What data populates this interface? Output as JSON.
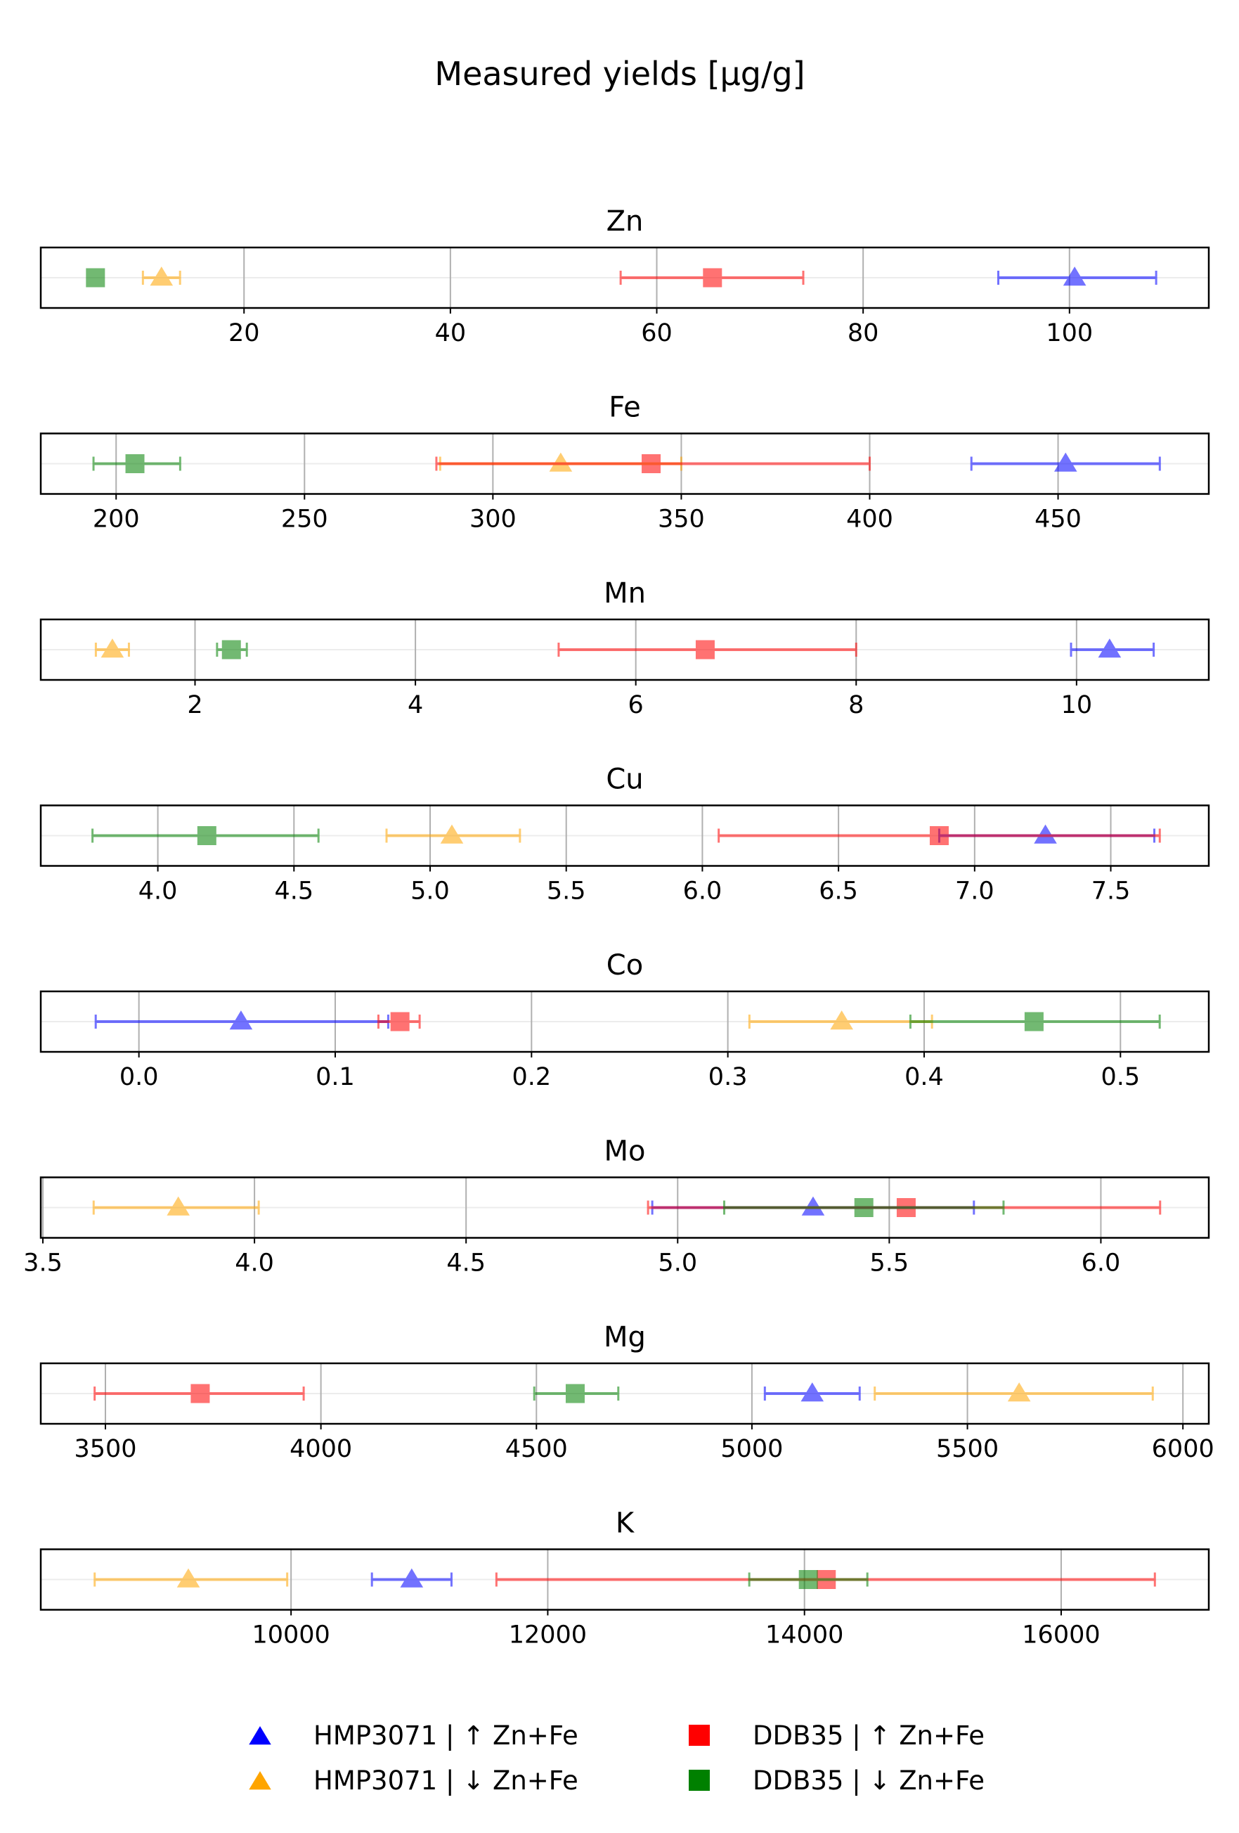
{
  "chart_data": {
    "type": "scatter",
    "title": "Measured yields [µg/g]",
    "grid": "vertical",
    "legend_position": "bottom-center",
    "legend": [
      {
        "label": "HMP3071 | ↑ Zn+Fe",
        "color": "#0000ff",
        "marker": "triangle"
      },
      {
        "label": "HMP3071 | ↓ Zn+Fe",
        "color": "#ffa500",
        "marker": "triangle"
      },
      {
        "label": "DDB35 | ↑ Zn+Fe",
        "color": "#ff0000",
        "marker": "square"
      },
      {
        "label": "DDB35 | ↓ Zn+Fe",
        "color": "#008000",
        "marker": "square"
      }
    ],
    "panels": [
      {
        "title": "Zn",
        "xlim": [
          0.3,
          113.5
        ],
        "ticks": [
          20,
          40,
          60,
          80,
          100
        ],
        "tick_labels": [
          "20",
          "40",
          "60",
          "80",
          "100"
        ],
        "points": [
          {
            "series": 0,
            "value": 100.5,
            "low": 93.1,
            "high": 108.4
          },
          {
            "series": 1,
            "value": 12.0,
            "low": 10.2,
            "high": 13.8
          },
          {
            "series": 2,
            "value": 65.4,
            "low": 56.5,
            "high": 74.2
          },
          {
            "series": 3,
            "value": 5.6,
            "low": 5.1,
            "high": 6.1
          }
        ]
      },
      {
        "title": "Fe",
        "xlim": [
          180,
          490
        ],
        "ticks": [
          200,
          250,
          300,
          350,
          400,
          450
        ],
        "tick_labels": [
          "200",
          "250",
          "300",
          "350",
          "400",
          "450"
        ],
        "points": [
          {
            "series": 0,
            "value": 452,
            "low": 427,
            "high": 477
          },
          {
            "series": 1,
            "value": 318,
            "low": 286,
            "high": 350
          },
          {
            "series": 2,
            "value": 342,
            "low": 285,
            "high": 400
          },
          {
            "series": 3,
            "value": 205,
            "low": 194,
            "high": 217
          }
        ]
      },
      {
        "title": "Mn",
        "xlim": [
          0.6,
          11.2
        ],
        "ticks": [
          2,
          4,
          6,
          8,
          10
        ],
        "tick_labels": [
          "2",
          "4",
          "6",
          "8",
          "10"
        ],
        "points": [
          {
            "series": 0,
            "value": 10.3,
            "low": 9.95,
            "high": 10.7
          },
          {
            "series": 1,
            "value": 1.25,
            "low": 1.1,
            "high": 1.4
          },
          {
            "series": 2,
            "value": 6.63,
            "low": 5.3,
            "high": 8.0
          },
          {
            "series": 3,
            "value": 2.33,
            "low": 2.2,
            "high": 2.47
          }
        ]
      },
      {
        "title": "Cu",
        "xlim": [
          3.57,
          7.86
        ],
        "ticks": [
          4.0,
          4.5,
          5.0,
          5.5,
          6.0,
          6.5,
          7.0,
          7.5
        ],
        "tick_labels": [
          "4.0",
          "4.5",
          "5.0",
          "5.5",
          "6.0",
          "6.5",
          "7.0",
          "7.5"
        ],
        "points": [
          {
            "series": 0,
            "value": 7.26,
            "low": 6.87,
            "high": 7.66
          },
          {
            "series": 1,
            "value": 5.08,
            "low": 4.84,
            "high": 5.33
          },
          {
            "series": 2,
            "value": 6.87,
            "low": 6.06,
            "high": 7.68
          },
          {
            "series": 3,
            "value": 4.18,
            "low": 3.76,
            "high": 4.59
          }
        ]
      },
      {
        "title": "Co",
        "xlim": [
          -0.05,
          0.545
        ],
        "ticks": [
          0.0,
          0.1,
          0.2,
          0.3,
          0.4,
          0.5
        ],
        "tick_labels": [
          "0.0",
          "0.1",
          "0.2",
          "0.3",
          "0.4",
          "0.5"
        ],
        "points": [
          {
            "series": 0,
            "value": 0.052,
            "low": -0.022,
            "high": 0.127
          },
          {
            "series": 1,
            "value": 0.358,
            "low": 0.311,
            "high": 0.404
          },
          {
            "series": 2,
            "value": 0.133,
            "low": 0.122,
            "high": 0.143
          },
          {
            "series": 3,
            "value": 0.456,
            "low": 0.393,
            "high": 0.52
          }
        ]
      },
      {
        "title": "Mo",
        "xlim": [
          3.495,
          6.255
        ],
        "ticks": [
          3.5,
          4.0,
          4.5,
          5.0,
          5.5,
          6.0
        ],
        "tick_labels": [
          "3.5",
          "4.0",
          "4.5",
          "5.0",
          "5.5",
          "6.0"
        ],
        "points": [
          {
            "series": 0,
            "value": 5.32,
            "low": 4.94,
            "high": 5.7
          },
          {
            "series": 1,
            "value": 3.82,
            "low": 3.62,
            "high": 4.01
          },
          {
            "series": 2,
            "value": 5.54,
            "low": 4.93,
            "high": 6.14
          },
          {
            "series": 3,
            "value": 5.44,
            "low": 5.11,
            "high": 5.77
          }
        ]
      },
      {
        "title": "Mg",
        "xlim": [
          3350,
          6060
        ],
        "ticks": [
          3500,
          4000,
          4500,
          5000,
          5500,
          6000
        ],
        "tick_labels": [
          "3500",
          "4000",
          "4500",
          "5000",
          "5500",
          "6000"
        ],
        "points": [
          {
            "series": 0,
            "value": 5140,
            "low": 5030,
            "high": 5250
          },
          {
            "series": 1,
            "value": 5620,
            "low": 5285,
            "high": 5930
          },
          {
            "series": 2,
            "value": 3720,
            "low": 3475,
            "high": 3960
          },
          {
            "series": 3,
            "value": 4590,
            "low": 4495,
            "high": 4690
          }
        ]
      },
      {
        "title": "K",
        "xlim": [
          8050,
          17150
        ],
        "ticks": [
          10000,
          12000,
          14000,
          16000
        ],
        "tick_labels": [
          "10000",
          "12000",
          "14000",
          "16000"
        ],
        "points": [
          {
            "series": 0,
            "value": 10940,
            "low": 10630,
            "high": 11250
          },
          {
            "series": 1,
            "value": 9200,
            "low": 8470,
            "high": 9970
          },
          {
            "series": 2,
            "value": 14170,
            "low": 11600,
            "high": 16730
          },
          {
            "series": 3,
            "value": 14030,
            "low": 13570,
            "high": 14490
          }
        ]
      }
    ]
  }
}
